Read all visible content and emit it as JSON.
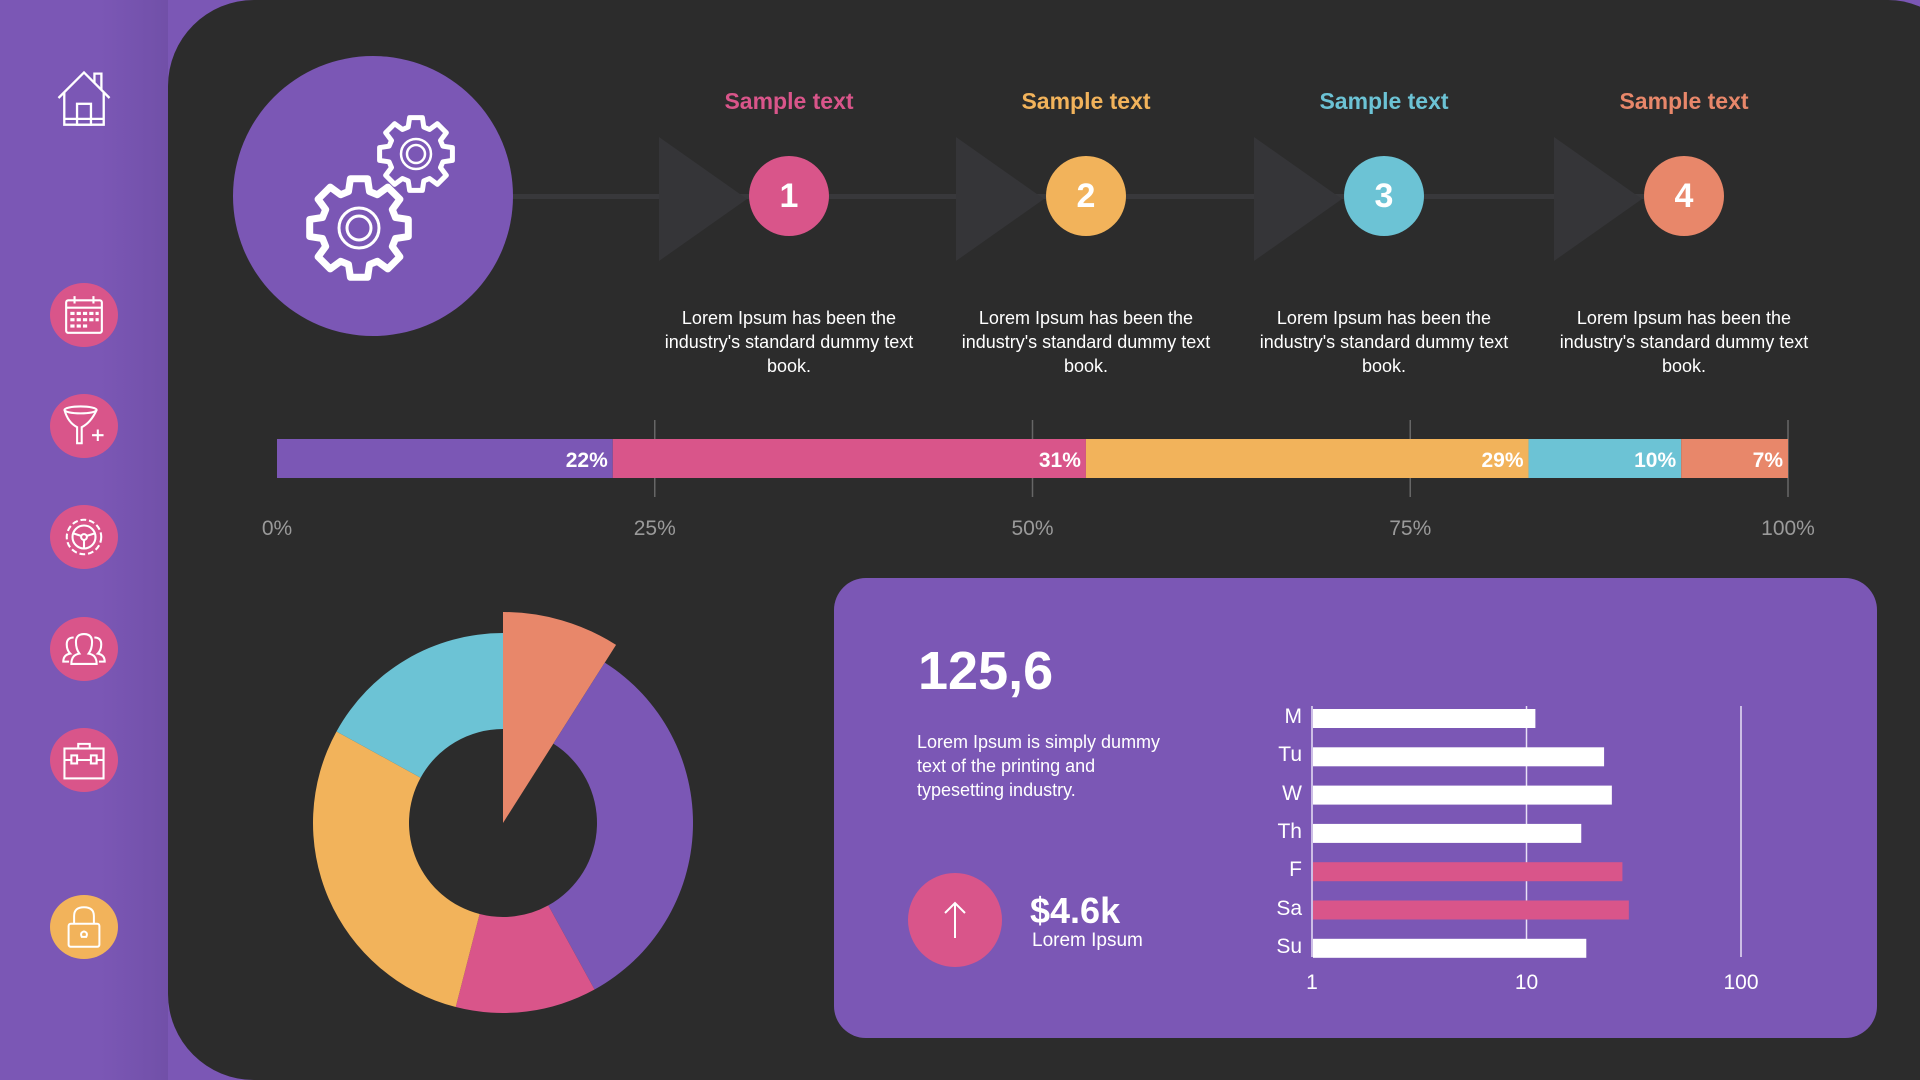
{
  "colors": {
    "purple": "#7b57b5",
    "pink": "#d9558a",
    "yellow": "#f2b35b",
    "blue": "#6cc3d5",
    "orange": "#e8876a",
    "dark": "#2c2c2c"
  },
  "sidebar": {
    "items": [
      {
        "icon": "home-icon"
      },
      {
        "icon": "calendar-icon"
      },
      {
        "icon": "funnel-add-icon"
      },
      {
        "icon": "steering-gear-icon"
      },
      {
        "icon": "team-icon"
      },
      {
        "icon": "briefcase-icon"
      },
      {
        "icon": "lock-icon"
      }
    ]
  },
  "hero": {
    "icon": "gears-icon"
  },
  "steps": [
    {
      "title": "Sample text",
      "number": "1",
      "desc": "Lorem Ipsum has been the industry's standard dummy text book.",
      "color": "#d9558a"
    },
    {
      "title": "Sample text",
      "number": "2",
      "desc": "Lorem Ipsum has been the industry's standard dummy text book.",
      "color": "#f2b35b"
    },
    {
      "title": "Sample text",
      "number": "3",
      "desc": "Lorem Ipsum has been the industry's standard dummy text book.",
      "color": "#6cc3d5"
    },
    {
      "title": "Sample text",
      "number": "4",
      "desc": "Lorem Ipsum has been the industry's standard dummy text book.",
      "color": "#e8876a"
    }
  ],
  "card": {
    "value": "125,6",
    "desc": "Lorem Ipsum is simply dummy text of the printing and typesetting industry.",
    "amount": "$4.6k",
    "amount_label": "Lorem Ipsum",
    "trend_icon": "arrow-up-icon"
  },
  "chart_data": [
    {
      "type": "bar",
      "orientation": "horizontal-stacked",
      "segments": [
        {
          "value": 22,
          "label": "22%",
          "color": "#7b57b5"
        },
        {
          "value": 31,
          "label": "31%",
          "color": "#d9558a"
        },
        {
          "value": 29,
          "label": "29%",
          "color": "#f2b35b"
        },
        {
          "value": 10,
          "label": "10%",
          "color": "#6cc3d5"
        },
        {
          "value": 7,
          "label": "7%",
          "color": "#e8876a"
        }
      ],
      "ticks": [
        "0%",
        "25%",
        "50%",
        "75%",
        "100%"
      ],
      "xlim": [
        0,
        100
      ]
    },
    {
      "type": "pie",
      "style": "donut",
      "slices": [
        {
          "value": 9,
          "color": "#e8876a",
          "exploded": true
        },
        {
          "value": 33,
          "color": "#7b57b5"
        },
        {
          "value": 12,
          "color": "#d9558a"
        },
        {
          "value": 29,
          "color": "#f2b35b"
        },
        {
          "value": 17,
          "color": "#6cc3d5"
        }
      ]
    },
    {
      "type": "bar",
      "orientation": "horizontal",
      "xscale": "log",
      "xlim": [
        1,
        100
      ],
      "ticks": [
        "1",
        "10",
        "100"
      ],
      "categories": [
        "M",
        "Tu",
        "W",
        "Th",
        "F",
        "Sa",
        "Su"
      ],
      "values": [
        11,
        23,
        25,
        18,
        28,
        30,
        19
      ],
      "colors": [
        "#ffffff",
        "#ffffff",
        "#ffffff",
        "#ffffff",
        "#d9558a",
        "#d9558a",
        "#ffffff"
      ],
      "grid": true
    }
  ]
}
